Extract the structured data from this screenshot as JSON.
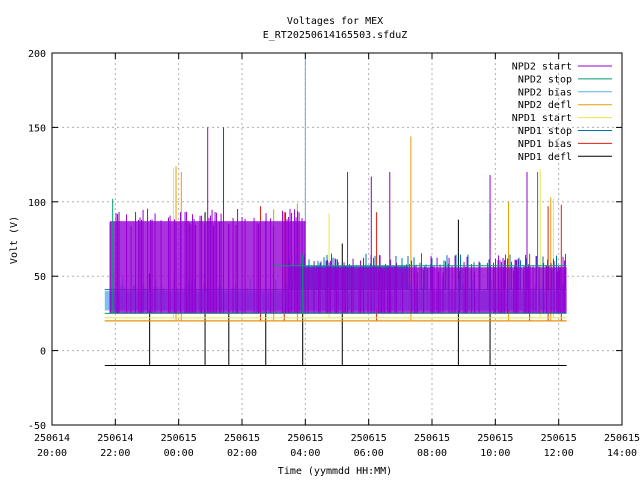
{
  "chart_data": {
    "type": "line",
    "title": "Voltages for MEX",
    "subtitle": "E_RT20250614165503.sfduZ",
    "xlabel": "Time (yymmdd HH:MM)",
    "ylabel": "Volt (V)",
    "xlim": [
      "2025-06-14T20:00",
      "2025-06-15T14:00"
    ],
    "ylim": [
      -50,
      200
    ],
    "grid": true,
    "legend_position": "top-right",
    "x_ticks": [
      {
        "date": "250614",
        "time": "20:00",
        "value": "2025-06-14T20:00"
      },
      {
        "date": "250614",
        "time": "22:00",
        "value": "2025-06-14T22:00"
      },
      {
        "date": "250615",
        "time": "00:00",
        "value": "2025-06-15T00:00"
      },
      {
        "date": "250615",
        "time": "02:00",
        "value": "2025-06-15T02:00"
      },
      {
        "date": "250615",
        "time": "04:00",
        "value": "2025-06-15T04:00"
      },
      {
        "date": "250615",
        "time": "06:00",
        "value": "2025-06-15T06:00"
      },
      {
        "date": "250615",
        "time": "08:00",
        "value": "2025-06-15T08:00"
      },
      {
        "date": "250615",
        "time": "10:00",
        "value": "2025-06-15T10:00"
      },
      {
        "date": "250615",
        "time": "12:00",
        "value": "2025-06-15T12:00"
      },
      {
        "date": "250615",
        "time": "14:00",
        "value": "2025-06-15T14:00"
      }
    ],
    "y_ticks": [
      200,
      150,
      100,
      50,
      0,
      -50
    ],
    "series": [
      {
        "name": "NPD2 start",
        "color": "#9400d3",
        "time_range": [
          "2025-06-14T21:50",
          "2025-06-15T12:15"
        ],
        "band": [
          25,
          87
        ],
        "band_until": "2025-06-15T04:00",
        "band2": [
          25,
          56
        ],
        "spikes": [
          [
            "2025-06-15T00:55",
            150
          ],
          [
            "2025-06-15T01:25",
            150
          ],
          [
            "2025-06-15T05:20",
            120
          ],
          [
            "2025-06-15T06:05",
            117
          ],
          [
            "2025-06-15T06:40",
            120
          ],
          [
            "2025-06-15T09:50",
            118
          ],
          [
            "2025-06-15T11:00",
            120
          ]
        ]
      },
      {
        "name": "NPD2 stop",
        "color": "#009e73",
        "time_range": [
          "2025-06-14T21:40",
          "2025-06-15T12:15"
        ],
        "level": 25,
        "level2": 57,
        "level2_from": "2025-06-15T03:00",
        "spikes": [
          [
            "2025-06-14T21:55",
            102
          ],
          [
            "2025-06-15T03:55",
            65
          ],
          [
            "2025-06-15T11:20",
            120
          ]
        ]
      },
      {
        "name": "NPD2 bias",
        "color": "#56b4e9",
        "time_range": [
          "2025-06-14T21:40",
          "2025-06-15T12:15"
        ],
        "band": [
          27,
          40
        ],
        "spikes": [
          [
            "2025-06-15T04:00",
            196
          ]
        ]
      },
      {
        "name": "NPD2 defl",
        "color": "#e69f00",
        "time_range": [
          "2025-06-14T21:40",
          "2025-06-15T12:15"
        ],
        "level": 20,
        "spikes": [
          [
            "2025-06-14T23:55",
            124
          ],
          [
            "2025-06-15T00:05",
            120
          ],
          [
            "2025-06-15T03:00",
            95
          ],
          [
            "2025-06-15T03:45",
            99
          ],
          [
            "2025-06-15T07:20",
            144
          ],
          [
            "2025-06-15T10:25",
            100
          ],
          [
            "2025-06-15T11:45",
            103
          ]
        ]
      },
      {
        "name": "NPD1 start",
        "color": "#f0e442",
        "time_range": [
          "2025-06-14T21:40",
          "2025-06-15T12:15"
        ],
        "level": 22,
        "spikes": [
          [
            "2025-06-14T23:50",
            123
          ],
          [
            "2025-06-15T04:45",
            92
          ],
          [
            "2025-06-15T11:25",
            122
          ],
          [
            "2025-06-15T11:50",
            102
          ]
        ]
      },
      {
        "name": "NPD1 stop",
        "color": "#0072b2",
        "time_range": [
          "2025-06-14T21:40",
          "2025-06-15T12:15"
        ],
        "level": 41,
        "band": [
          41,
          57
        ],
        "band_range": [
          "2025-06-15T03:30",
          "2025-06-15T07:15"
        ],
        "spikes": []
      },
      {
        "name": "NPD1 bias",
        "color": "#e51e10",
        "time_range": [
          "2025-06-14T21:40",
          "2025-06-15T12:15"
        ],
        "level": 20,
        "spikes": [
          [
            "2025-06-15T02:35",
            97
          ],
          [
            "2025-06-15T03:20",
            93
          ],
          [
            "2025-06-15T06:15",
            93
          ],
          [
            "2025-06-15T11:05",
            65
          ],
          [
            "2025-06-15T11:40",
            97
          ],
          [
            "2025-06-15T12:05",
            98
          ]
        ]
      },
      {
        "name": "NPD1 defl",
        "color": "#000000",
        "time_range": [
          "2025-06-14T21:40",
          "2025-06-15T12:15"
        ],
        "level": -10,
        "spikes": [
          [
            "2025-06-14T23:05",
            52
          ],
          [
            "2025-06-15T00:50",
            93
          ],
          [
            "2025-06-15T01:35",
            85
          ],
          [
            "2025-06-15T02:45",
            87
          ],
          [
            "2025-06-15T03:55",
            64
          ],
          [
            "2025-06-15T05:10",
            72
          ],
          [
            "2025-06-15T08:50",
            88
          ],
          [
            "2025-06-15T09:50",
            92
          ]
        ]
      }
    ]
  }
}
